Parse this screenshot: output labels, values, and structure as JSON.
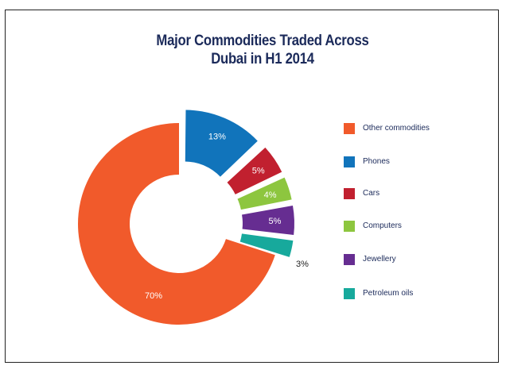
{
  "chart_data": {
    "type": "pie",
    "donut": true,
    "title": [
      "Major Commodities Traded Across",
      "Dubai in H1 2014"
    ],
    "categories": [
      "Other commodities",
      "Phones",
      "Cars",
      "Computers",
      "Jewellery",
      "Petroleum oils"
    ],
    "values": [
      70,
      13,
      5,
      4,
      5,
      3
    ],
    "labels": [
      "70%",
      "13%",
      "5%",
      "4%",
      "5%",
      "3%"
    ],
    "colors": [
      "#f15a2b",
      "#1174bb",
      "#c1202f",
      "#8dc63f",
      "#662d91",
      "#17a99c"
    ],
    "exploded": [
      false,
      true,
      true,
      true,
      true,
      true
    ],
    "legend_position": "right"
  }
}
